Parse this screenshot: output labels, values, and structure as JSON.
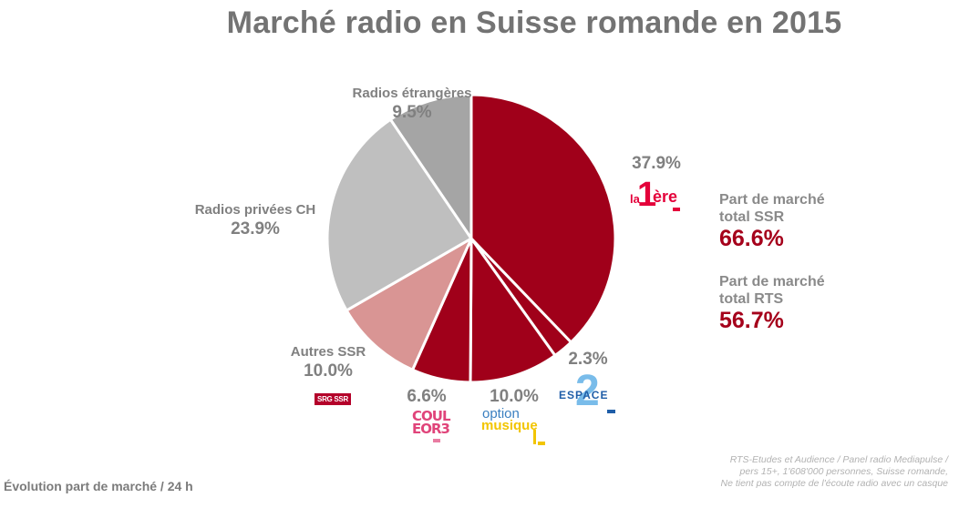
{
  "title": "Marché radio en Suisse romande en 2015",
  "chart_data": {
    "type": "pie",
    "title": "Marché radio en Suisse romande en 2015",
    "start_angle_deg": 0,
    "direction": "clockwise",
    "center": [
      517,
      262
    ],
    "radius": 158,
    "slices": [
      {
        "label": "La 1ère",
        "value": 37.9,
        "display": "37.9%",
        "color": "#a0001a",
        "logo": "la-1ere-logo"
      },
      {
        "label": "Espace 2",
        "value": 2.3,
        "display": "2.3%",
        "color": "#a0001a",
        "logo": "espace-2-logo"
      },
      {
        "label": "Option Musique",
        "value": 10.0,
        "display": "10.0%",
        "color": "#a0001a",
        "logo": "option-musique-logo"
      },
      {
        "label": "Couleur 3",
        "value": 6.6,
        "display": "6.6%",
        "color": "#a0001a",
        "logo": "couleur-3-logo"
      },
      {
        "label": "Autres SSR",
        "value": 10.0,
        "display": "10.0%",
        "color": "#d99594",
        "logo": "srg-ssr-logo"
      },
      {
        "label": "Radios privées CH",
        "value": 23.9,
        "display": "23.9%",
        "color": "#bfbfbf"
      },
      {
        "label": "Radios étrangères",
        "value": 9.5,
        "display": "9.5%",
        "color": "#a5a5a5"
      }
    ],
    "legend": "none (direct labels)"
  },
  "labels": {
    "etrangeres": {
      "name": "Radios étrangères",
      "pct": "9.5%"
    },
    "privees": {
      "name": "Radios privées CH",
      "pct": "23.9%"
    },
    "autres_ssr": {
      "name": "Autres SSR",
      "pct": "10.0%"
    },
    "la1ere": {
      "pct": "37.9%"
    },
    "espace2": {
      "pct": "2.3%"
    },
    "option_musique": {
      "pct": "10.0%"
    },
    "couleur3": {
      "pct": "6.6%"
    }
  },
  "logos": {
    "la1ere": {
      "la": "la",
      "one": "1",
      "ere": "ère"
    },
    "srgssr": {
      "text": "SRG SSR"
    },
    "couleur3": {
      "line1": "COUL",
      "line2": "EOR3"
    },
    "option_musique": {
      "line1": "option",
      "line2": "musique"
    },
    "espace2": {
      "two": "2",
      "text": "ESPACE"
    }
  },
  "kpis": [
    {
      "label_line1": "Part de marché",
      "label_line2": "total SSR",
      "value": "66.6%"
    },
    {
      "label_line1": "Part de marché",
      "label_line2": "total RTS",
      "value": "56.7%"
    }
  ],
  "footer": {
    "left": "Évolution part de marché / 24 h",
    "source_lines": [
      "RTS-Etudes et Audience / Panel radio Mediapulse /",
      "pers 15+, 1'608'000 personnes, Suisse romande,",
      "Ne tient pas compte de l'écoute radio avec un casque"
    ]
  }
}
